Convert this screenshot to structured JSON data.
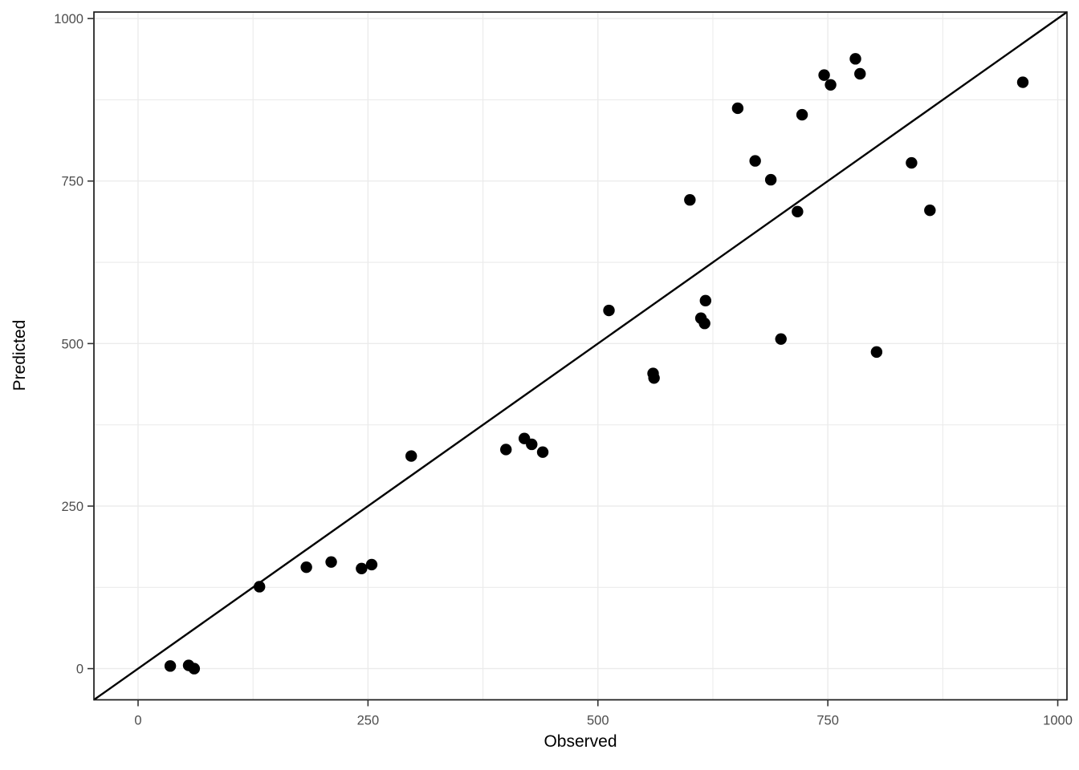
{
  "chart_data": {
    "type": "scatter",
    "title": "",
    "xlabel": "Observed",
    "ylabel": "Predicted",
    "x_ticks": [
      0,
      250,
      500,
      750,
      1000
    ],
    "y_ticks": [
      0,
      250,
      500,
      750,
      1000
    ],
    "x_minor_ticks": [
      125,
      375,
      625,
      875
    ],
    "y_minor_ticks": [
      125,
      375,
      625,
      875
    ],
    "xlim": [
      -48,
      1010
    ],
    "ylim": [
      -48,
      1010
    ],
    "grid": "major+minor",
    "legend_position": "none",
    "identity_line": {
      "slope": 1,
      "intercept": 0
    },
    "points": [
      [
        35,
        4
      ],
      [
        55,
        5
      ],
      [
        61,
        0
      ],
      [
        132,
        126
      ],
      [
        183,
        156
      ],
      [
        210,
        164
      ],
      [
        243,
        154
      ],
      [
        254,
        160
      ],
      [
        297,
        327
      ],
      [
        400,
        337
      ],
      [
        420,
        354
      ],
      [
        428,
        345
      ],
      [
        440,
        333
      ],
      [
        512,
        551
      ],
      [
        560,
        454
      ],
      [
        561,
        447
      ],
      [
        600,
        721
      ],
      [
        612,
        539
      ],
      [
        616,
        531
      ],
      [
        617,
        566
      ],
      [
        652,
        862
      ],
      [
        671,
        781
      ],
      [
        688,
        752
      ],
      [
        699,
        507
      ],
      [
        717,
        703
      ],
      [
        722,
        852
      ],
      [
        746,
        913
      ],
      [
        753,
        898
      ],
      [
        780,
        938
      ],
      [
        785,
        915
      ],
      [
        803,
        487
      ],
      [
        841,
        778
      ],
      [
        861,
        705
      ],
      [
        962,
        902
      ]
    ],
    "colors": {
      "point": "#000000",
      "identity_line": "#000000",
      "grid_major": "#ebebeb",
      "grid_minor": "#ebebeb",
      "panel_border": "#1a1a1a",
      "panel_background": "#ffffff",
      "tick_mark": "#333333",
      "tick_label": "#4d4d4d",
      "axis_title": "#000000"
    }
  }
}
